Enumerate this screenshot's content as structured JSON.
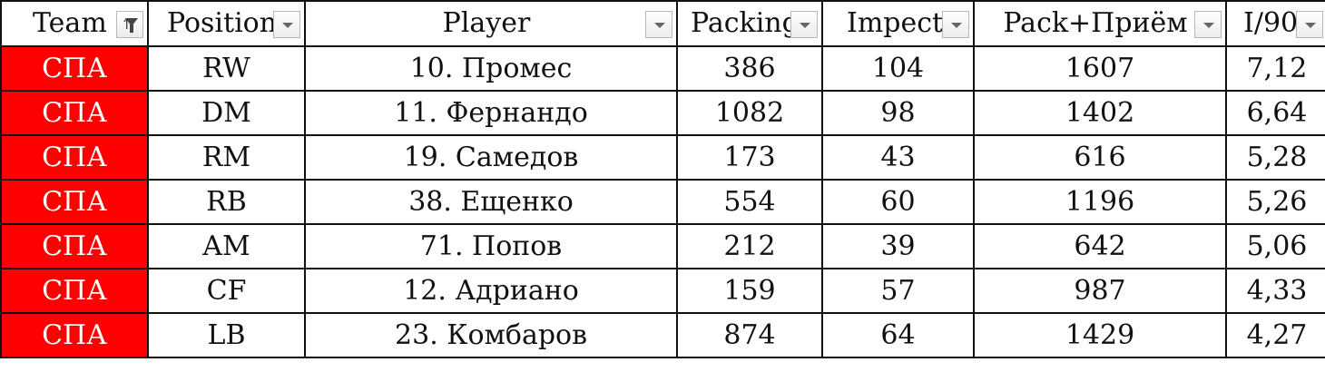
{
  "colors": {
    "team_fill": "#ff0000",
    "team_text": "#ffffff"
  },
  "headers": [
    {
      "label": "Team",
      "filter": "sort-filter-active-icon"
    },
    {
      "label": "Position",
      "filter": "dropdown-arrow-icon"
    },
    {
      "label": "Player",
      "filter": "dropdown-arrow-icon"
    },
    {
      "label": "Packing",
      "filter": "dropdown-arrow-icon"
    },
    {
      "label": "Impect",
      "filter": "dropdown-arrow-icon"
    },
    {
      "label": "Pack+Приём",
      "filter": "dropdown-arrow-icon"
    },
    {
      "label": "I/90",
      "filter": "dropdown-arrow-icon"
    }
  ],
  "rows": [
    [
      "СПА",
      "RW",
      "10. Промес",
      "386",
      "104",
      "1607",
      "7,12"
    ],
    [
      "СПА",
      "DM",
      "11. Фернандо",
      "1082",
      "98",
      "1402",
      "6,64"
    ],
    [
      "СПА",
      "RM",
      "19. Самедов",
      "173",
      "43",
      "616",
      "5,28"
    ],
    [
      "СПА",
      "RB",
      "38. Ещенко",
      "554",
      "60",
      "1196",
      "5,26"
    ],
    [
      "СПА",
      "AM",
      "71. Попов",
      "212",
      "39",
      "642",
      "5,06"
    ],
    [
      "СПА",
      "CF",
      "12. Адриано",
      "159",
      "57",
      "987",
      "4,33"
    ],
    [
      "СПА",
      "LB",
      "23. Комбаров",
      "874",
      "64",
      "1429",
      "4,27"
    ]
  ]
}
